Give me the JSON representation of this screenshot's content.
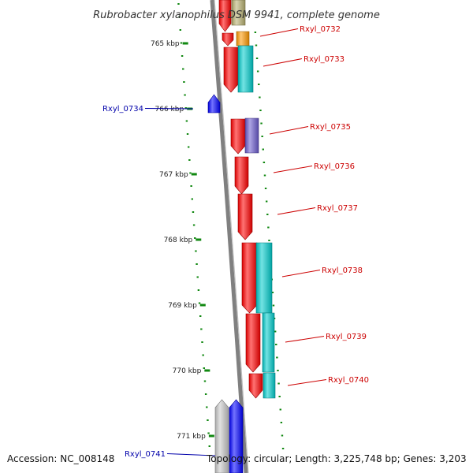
{
  "title": "Rubrobacter xylanophilus DSM 9941, complete genome",
  "accession": "Accession: NC_008148",
  "topology": "Topology: circular; Length: 3,225,748 bp; Genes: 3,203",
  "colors": {
    "forward_label": "#cc0000",
    "reverse_label": "#0000aa",
    "tick": "#118811",
    "backbone": "#808080",
    "forward_gene": "#ff0000",
    "reverse_gene": "#0000ff",
    "pseudo_gene": "#c8c8c8",
    "cog_cyan": "#00cccc",
    "cog_purple": "#6a5acd",
    "cog_orange": "#ff9900",
    "cog_olive": "#b8b070"
  },
  "ticks": [
    "765 kbp",
    "766 kbp",
    "767 kbp",
    "768 kbp",
    "769 kbp",
    "770 kbp",
    "771 kbp"
  ],
  "genes": [
    {
      "id": "Rxyl_0732",
      "strand": "forward"
    },
    {
      "id": "Rxyl_0733",
      "strand": "forward"
    },
    {
      "id": "Rxyl_0734",
      "strand": "reverse"
    },
    {
      "id": "Rxyl_0735",
      "strand": "forward"
    },
    {
      "id": "Rxyl_0736",
      "strand": "forward"
    },
    {
      "id": "Rxyl_0737",
      "strand": "forward"
    },
    {
      "id": "Rxyl_0738",
      "strand": "forward"
    },
    {
      "id": "Rxyl_0739",
      "strand": "forward"
    },
    {
      "id": "Rxyl_0740",
      "strand": "forward"
    },
    {
      "id": "Rxyl_0741",
      "strand": "reverse"
    }
  ]
}
